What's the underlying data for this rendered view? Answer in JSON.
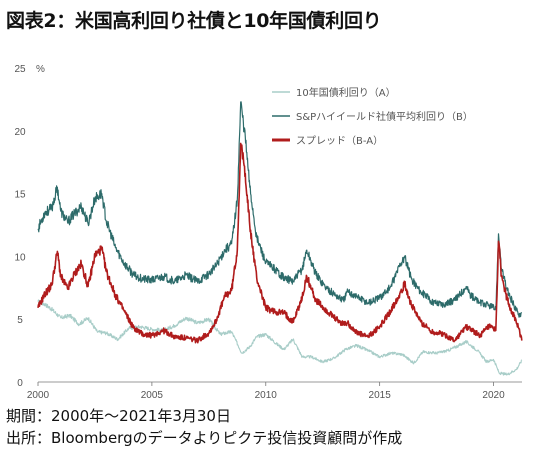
{
  "title": "図表2：米国高利回り社債と10年国債利回り",
  "footer": {
    "period": "期間：2000年～2021年3月30日",
    "source": "出所：Bloombergのデータよりピクテ投信投資顧問が作成"
  },
  "chart_data": {
    "type": "line",
    "title": "",
    "xlabel": "",
    "ylabel": "",
    "y_unit": "%",
    "xlim": [
      2000,
      2021.25
    ],
    "ylim": [
      0,
      25
    ],
    "x_ticks": [
      2000,
      2005,
      2010,
      2015,
      2020
    ],
    "y_ticks": [
      0,
      5,
      10,
      15,
      20,
      25
    ],
    "grid": false,
    "legend_position": "top-right",
    "series": [
      {
        "name": "10年国債利回り（A）",
        "color": "#a8cdc8",
        "width": 1.1,
        "x": [
          2000.0,
          2000.3,
          2000.6,
          2001.0,
          2001.4,
          2001.8,
          2002.2,
          2002.6,
          2003.0,
          2003.5,
          2004.0,
          2004.5,
          2005.0,
          2005.5,
          2006.0,
          2006.5,
          2007.0,
          2007.5,
          2008.0,
          2008.5,
          2008.95,
          2009.3,
          2009.6,
          2010.0,
          2010.5,
          2010.8,
          2011.2,
          2011.6,
          2012.0,
          2012.5,
          2013.0,
          2013.5,
          2014.0,
          2014.5,
          2015.0,
          2015.5,
          2016.0,
          2016.5,
          2016.9,
          2017.5,
          2018.0,
          2018.8,
          2019.3,
          2019.7,
          2020.0,
          2020.25,
          2020.6,
          2021.0,
          2021.24
        ],
        "values": [
          6.4,
          6.2,
          5.8,
          5.1,
          5.3,
          4.6,
          5.1,
          4.0,
          3.9,
          3.4,
          4.3,
          4.4,
          4.2,
          4.1,
          4.5,
          5.1,
          4.7,
          5.0,
          3.8,
          4.0,
          2.3,
          2.8,
          3.6,
          3.8,
          3.0,
          2.6,
          3.4,
          2.0,
          2.0,
          1.6,
          1.9,
          2.6,
          2.9,
          2.5,
          2.0,
          2.3,
          2.2,
          1.5,
          2.4,
          2.3,
          2.5,
          3.2,
          2.5,
          1.6,
          1.8,
          0.7,
          0.6,
          1.0,
          1.7
        ]
      },
      {
        "name": "S&Pハイイールド社債平均利回り（B）",
        "color": "#2d6b6a",
        "width": 1.2,
        "x": [
          2000.0,
          2000.3,
          2000.6,
          2000.85,
          2001.0,
          2001.3,
          2001.6,
          2001.9,
          2002.2,
          2002.5,
          2002.8,
          2003.0,
          2003.4,
          2003.8,
          2004.2,
          2004.6,
          2005.0,
          2005.5,
          2006.0,
          2006.5,
          2007.0,
          2007.5,
          2007.8,
          2008.2,
          2008.5,
          2008.75,
          2008.9,
          2009.1,
          2009.3,
          2009.6,
          2010.0,
          2010.4,
          2010.8,
          2011.2,
          2011.6,
          2011.8,
          2012.2,
          2012.6,
          2013.0,
          2013.4,
          2013.6,
          2014.0,
          2014.5,
          2015.0,
          2015.5,
          2015.9,
          2016.1,
          2016.4,
          2016.8,
          2017.3,
          2017.8,
          2018.3,
          2018.8,
          2019.0,
          2019.4,
          2019.8,
          2020.1,
          2020.22,
          2020.35,
          2020.6,
          2020.9,
          2021.1,
          2021.24
        ],
        "values": [
          12.2,
          13.5,
          13.8,
          15.5,
          13.6,
          12.7,
          13.4,
          14.0,
          12.6,
          14.6,
          15.0,
          12.8,
          10.7,
          9.4,
          8.5,
          8.2,
          8.1,
          8.4,
          8.0,
          8.5,
          8.0,
          8.6,
          9.2,
          10.5,
          11.0,
          14.5,
          22.3,
          19.5,
          15.5,
          11.5,
          9.5,
          9.0,
          8.3,
          8.0,
          9.0,
          10.5,
          8.6,
          7.6,
          7.0,
          6.5,
          7.2,
          6.8,
          6.3,
          6.7,
          7.6,
          9.4,
          9.9,
          8.2,
          7.2,
          6.4,
          6.2,
          6.5,
          7.6,
          6.9,
          6.3,
          6.1,
          5.8,
          11.8,
          9.0,
          7.3,
          6.1,
          5.4,
          5.5
        ]
      },
      {
        "name": "スプレッド（B-A）",
        "color": "#b01c1c",
        "width": 1.6,
        "x": [
          2000.0,
          2000.3,
          2000.6,
          2000.85,
          2001.0,
          2001.3,
          2001.6,
          2001.9,
          2002.2,
          2002.5,
          2002.8,
          2003.0,
          2003.4,
          2003.8,
          2004.2,
          2004.6,
          2005.0,
          2005.5,
          2006.0,
          2006.5,
          2007.0,
          2007.5,
          2007.8,
          2008.2,
          2008.5,
          2008.75,
          2008.9,
          2009.1,
          2009.3,
          2009.6,
          2010.0,
          2010.4,
          2010.8,
          2011.2,
          2011.6,
          2011.8,
          2012.2,
          2012.6,
          2013.0,
          2013.4,
          2013.6,
          2014.0,
          2014.5,
          2015.0,
          2015.5,
          2015.9,
          2016.1,
          2016.4,
          2016.8,
          2017.3,
          2017.8,
          2018.3,
          2018.8,
          2019.0,
          2019.4,
          2019.8,
          2020.1,
          2020.22,
          2020.35,
          2020.6,
          2020.9,
          2021.1,
          2021.24
        ],
        "values": [
          5.9,
          7.0,
          7.7,
          10.4,
          8.4,
          7.4,
          8.6,
          9.4,
          7.6,
          10.1,
          10.6,
          8.8,
          6.9,
          5.6,
          4.3,
          3.8,
          3.7,
          4.1,
          3.6,
          3.5,
          3.3,
          3.9,
          4.8,
          6.8,
          7.3,
          10.5,
          19.0,
          16.6,
          12.4,
          8.3,
          5.9,
          5.6,
          5.5,
          4.8,
          6.7,
          8.4,
          6.5,
          5.8,
          5.1,
          4.6,
          4.7,
          3.9,
          3.6,
          4.4,
          5.7,
          7.1,
          7.8,
          6.1,
          4.8,
          4.0,
          3.8,
          3.3,
          4.4,
          4.2,
          3.7,
          4.4,
          4.1,
          11.2,
          8.4,
          6.6,
          5.2,
          4.3,
          3.3
        ]
      }
    ]
  }
}
